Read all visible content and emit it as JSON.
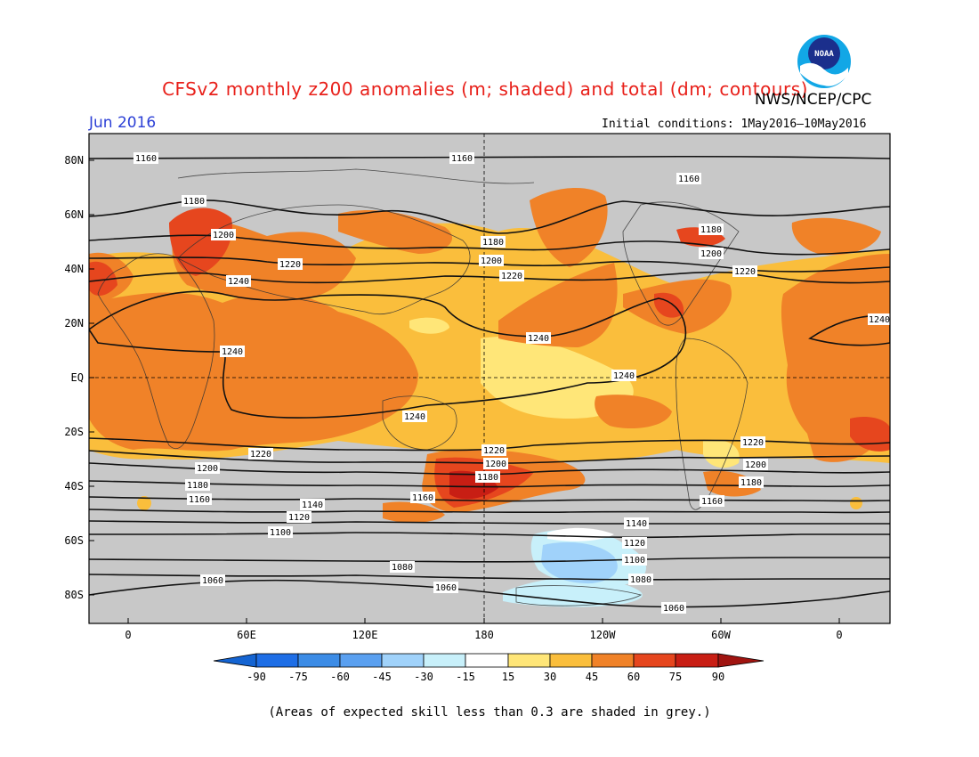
{
  "title": "CFSv2 monthly z200 anomalies (m; shaded) and total (dm; contours)",
  "agency": "NWS/NCEP/CPC",
  "logo_text": "NOAA",
  "month": "Jun 2016",
  "initial_conditions": "Initial conditions: 1May2016–10May2016",
  "footnote": "(Areas of expected skill less than 0.3 are shaded in grey.)",
  "map": {
    "lat_labels": [
      "80N",
      "60N",
      "40N",
      "20N",
      "EQ",
      "20S",
      "40S",
      "60S",
      "80S"
    ],
    "lon_labels": [
      "0",
      "60E",
      "120E",
      "180",
      "120W",
      "60W",
      "0"
    ],
    "contour_labels": [
      "1160",
      "1160",
      "1160",
      "1180",
      "1200",
      "1220",
      "1240",
      "1180",
      "1200",
      "1220",
      "1240",
      "1180",
      "1200",
      "1220",
      "1240",
      "1240",
      "1240",
      "1240",
      "1220",
      "1220",
      "1220",
      "1200",
      "1200",
      "1200",
      "1180",
      "1180",
      "1180",
      "1160",
      "1160",
      "1160",
      "1140",
      "1140",
      "1120",
      "1120",
      "1100",
      "1100",
      "1080",
      "1080",
      "1060",
      "1060",
      "1060"
    ]
  },
  "colorbar": {
    "labels": [
      "-90",
      "-75",
      "-60",
      "-45",
      "-30",
      "-15",
      "15",
      "30",
      "45",
      "60",
      "75",
      "90"
    ],
    "colors": [
      "#1464d2",
      "#1e6ee6",
      "#3c8ce6",
      "#5aa0f0",
      "#a0d2fa",
      "#c8f0fa",
      "#ffffff",
      "#ffe678",
      "#fabe3c",
      "#f08228",
      "#e6461e",
      "#c81e14",
      "#a01410"
    ]
  },
  "colors": {
    "skill_grey": "#c8c8c8",
    "anom_15_30": "#ffe678",
    "anom_30_45": "#fabe3c",
    "anom_45_60": "#f08228",
    "anom_60_75": "#e6461e",
    "anom_75_90": "#c81e14",
    "anom_neg_15_30": "#c8f0fa",
    "anom_neg_30_45": "#a0d2fa",
    "title_red": "#e8201a",
    "month_blue": "#2b3fd6"
  }
}
